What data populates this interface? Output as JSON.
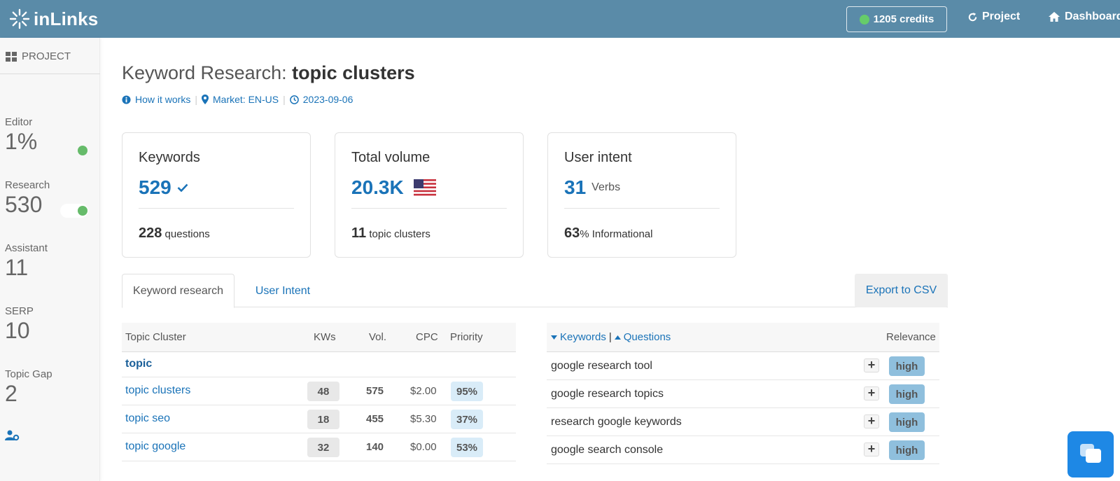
{
  "app": {
    "logo_text": "inLinks"
  },
  "topbar": {
    "credits_label": "1205 credits",
    "project_label": "Project",
    "dashboard_label": "Dashboard"
  },
  "sidebar": {
    "project_label": "PROJECT",
    "stats": [
      {
        "label": "Editor",
        "value": "1%"
      },
      {
        "label": "Research",
        "value": "530"
      },
      {
        "label": "Assistant",
        "value": "11"
      },
      {
        "label": "SERP",
        "value": "10"
      },
      {
        "label": "Topic Gap",
        "value": "2"
      }
    ]
  },
  "header": {
    "title_prefix": "Keyword Research:",
    "title_topic": "topic clusters",
    "how_it_works": "How it works",
    "market": "Market: EN-US",
    "date": "2023-09-06"
  },
  "cards": {
    "keywords": {
      "title": "Keywords",
      "value": "529",
      "foot_value": "228",
      "foot_label": "questions"
    },
    "volume": {
      "title": "Total volume",
      "value": "20.3K",
      "foot_value": "11",
      "foot_label": "topic clusters"
    },
    "intent": {
      "title": "User intent",
      "value": "31",
      "value_suffix": "Verbs",
      "foot_value": "63",
      "foot_label": "% Informational"
    }
  },
  "tabs": {
    "keyword_research": "Keyword research",
    "user_intent": "User Intent",
    "export": "Export to CSV"
  },
  "topic_table": {
    "headers": {
      "cluster": "Topic Cluster",
      "kws": "KWs",
      "vol": "Vol.",
      "cpc": "CPC",
      "priority": "Priority"
    },
    "group": "topic",
    "rows": [
      {
        "name": "topic clusters",
        "kws": "48",
        "vol": "575",
        "cpc": "$2.00",
        "priority": "95%"
      },
      {
        "name": "topic seo",
        "kws": "18",
        "vol": "455",
        "cpc": "$5.30",
        "priority": "37%"
      },
      {
        "name": "topic google",
        "kws": "32",
        "vol": "140",
        "cpc": "$0.00",
        "priority": "53%"
      }
    ]
  },
  "keyword_table": {
    "headers": {
      "keywords": "Keywords",
      "questions": "Questions",
      "relevance": "Relevance"
    },
    "rows": [
      {
        "keyword": "google research tool",
        "relevance": "high"
      },
      {
        "keyword": "google research topics",
        "relevance": "high"
      },
      {
        "keyword": "research google keywords",
        "relevance": "high"
      },
      {
        "keyword": "google search console",
        "relevance": "high"
      }
    ]
  },
  "colors": {
    "topbar": "#5a8ba8",
    "link": "#1a73b8",
    "status_green": "#66bb6a",
    "relevance_pill": "#8fbfdd"
  },
  "icons": [
    "sunburst-logo-icon",
    "grid-icon",
    "refresh-icon",
    "home-icon",
    "info-icon",
    "map-marker-icon",
    "clock-icon",
    "check-icon",
    "us-flag-icon",
    "user-cog-icon",
    "caret-down-icon",
    "caret-up-icon",
    "plus-icon",
    "chat-icon"
  ]
}
